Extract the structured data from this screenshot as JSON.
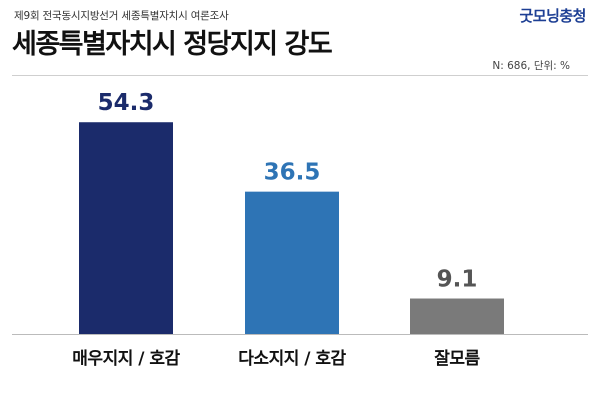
{
  "header": {
    "subtitle": "제9회 전국동시지방선거 세종특별자치시 여론조사",
    "title": "세종특별자치시 정당지지 강도",
    "brand": "굿모닝충청",
    "note": "N: 686, 단위: %"
  },
  "chart_data": {
    "type": "bar",
    "categories": [
      "매우지지 / 호감",
      "다소지지 / 호감",
      "잘모름"
    ],
    "values": [
      54.3,
      36.5,
      9.1
    ],
    "value_labels": [
      "54.3",
      "36.5",
      "9.1"
    ],
    "colors": [
      "#1b2b6b",
      "#2e74b5",
      "#7a7a7a"
    ],
    "label_colors": [
      "#1b2b6b",
      "#2e74b5",
      "#555555"
    ],
    "ylim": [
      0,
      60
    ],
    "grid": false,
    "legend": false
  }
}
